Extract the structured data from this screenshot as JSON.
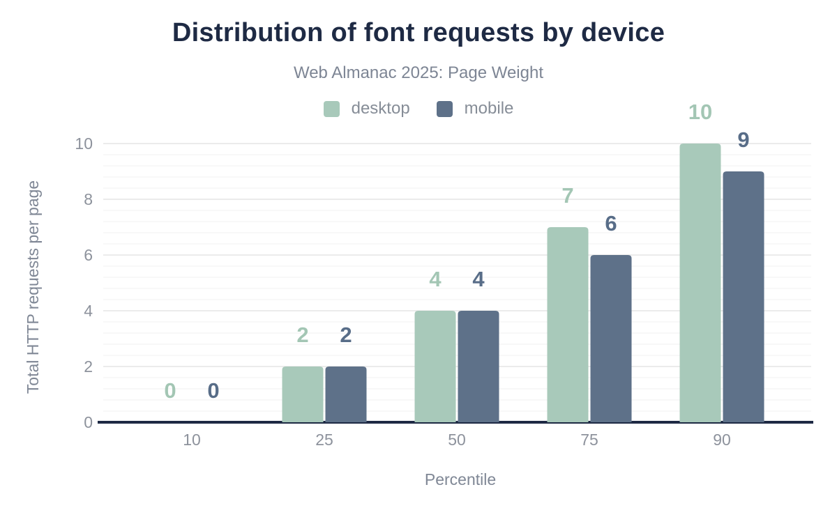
{
  "chart_data": {
    "type": "bar",
    "title": "Distribution of font requests by device",
    "subtitle": "Web Almanac 2025: Page Weight",
    "xlabel": "Percentile",
    "ylabel": "Total HTTP requests per page",
    "categories": [
      "10",
      "25",
      "50",
      "75",
      "90"
    ],
    "series": [
      {
        "name": "desktop",
        "color": "#a8c9ba",
        "label_color": "#a3c6b4",
        "values": [
          0,
          2,
          4,
          7,
          10
        ]
      },
      {
        "name": "mobile",
        "color": "#5e7189",
        "label_color": "#586d88",
        "values": [
          0,
          2,
          4,
          6,
          9
        ]
      }
    ],
    "ylim": [
      0,
      10
    ],
    "yticks": [
      0,
      2,
      4,
      6,
      8,
      10
    ],
    "grid": {
      "on": true,
      "major_step": 2,
      "minor_step": 0.4
    },
    "legend_position": "top",
    "value_labels": true
  },
  "colors": {
    "background": "#ffffff",
    "title": "#1e2a44",
    "subtitle": "#7d8594",
    "legend_label": "#868d97",
    "axis_line": "#1e2a44",
    "tick_label": "#8d929c",
    "axis_title": "#7f8795",
    "grid_major": "#ebebeb",
    "grid_minor": "#f5f5f6"
  }
}
